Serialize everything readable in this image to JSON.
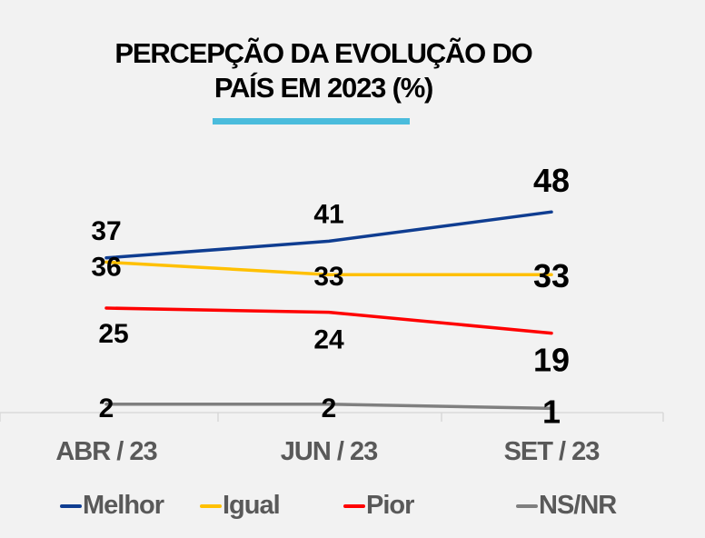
{
  "title_line1": "PERCEPÇÃO DA EVOLUÇÃO DO",
  "title_line2": "PAÍS EM 2023 (%)",
  "accent_color": "#4bbcdc",
  "chart_data": {
    "type": "line",
    "title": "PERCEPÇÃO DA EVOLUÇÃO DO PAÍS EM 2023 (%)",
    "xlabel": "",
    "ylabel": "",
    "categories": [
      "ABR / 23",
      "JUN / 23",
      "SET / 23"
    ],
    "ylim": [
      0,
      50
    ],
    "grid": false,
    "legend_position": "bottom",
    "series": [
      {
        "name": "Melhor",
        "color": "#0f3d91",
        "values": [
          37,
          41,
          48
        ]
      },
      {
        "name": "Igual",
        "color": "#ffc000",
        "values": [
          36,
          33,
          33
        ]
      },
      {
        "name": "Pior",
        "color": "#ff0000",
        "values": [
          25,
          24,
          19
        ]
      },
      {
        "name": "NS/NR",
        "color": "#7f7f7f",
        "values": [
          2,
          2,
          1
        ]
      }
    ]
  }
}
